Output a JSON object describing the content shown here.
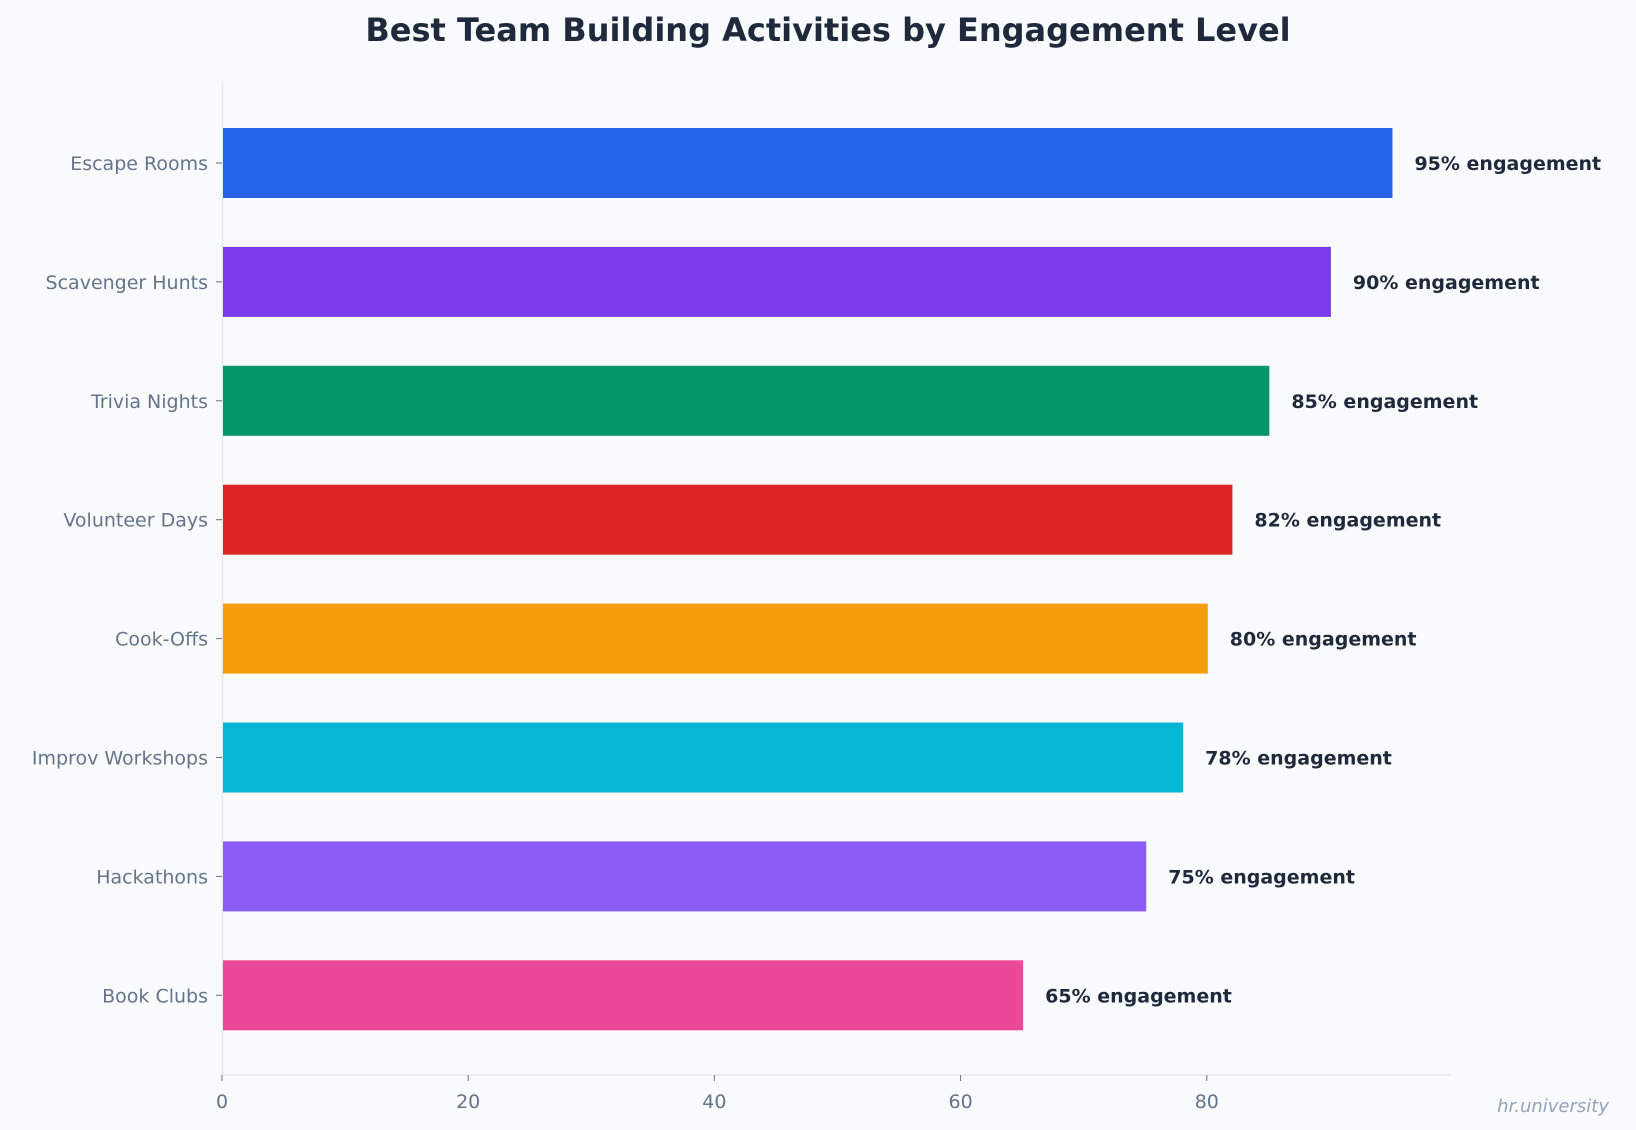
{
  "chart_data": {
    "type": "bar",
    "orientation": "horizontal",
    "title": "Best Team Building Activities by Engagement Level",
    "xlabel": "",
    "ylabel": "",
    "xlim": [
      0,
      100
    ],
    "xticks": [
      0,
      20,
      40,
      60,
      80
    ],
    "grid": false,
    "categories": [
      "Escape Rooms",
      "Scavenger Hunts",
      "Trivia Nights",
      "Volunteer Days",
      "Cook-Offs",
      "Improv Workshops",
      "Hackathons",
      "Book Clubs"
    ],
    "values": [
      95,
      90,
      85,
      82,
      80,
      78,
      75,
      65
    ],
    "value_labels": [
      "95% engagement",
      "90% engagement",
      "85% engagement",
      "82% engagement",
      "80% engagement",
      "78% engagement",
      "75% engagement",
      "65% engagement"
    ],
    "colors": [
      "#2563eb",
      "#7c3aed",
      "#059669",
      "#dc2626",
      "#f59e0b",
      "#06b6d4",
      "#8b5cf6",
      "#ec4899"
    ]
  },
  "watermark": "hr.university"
}
